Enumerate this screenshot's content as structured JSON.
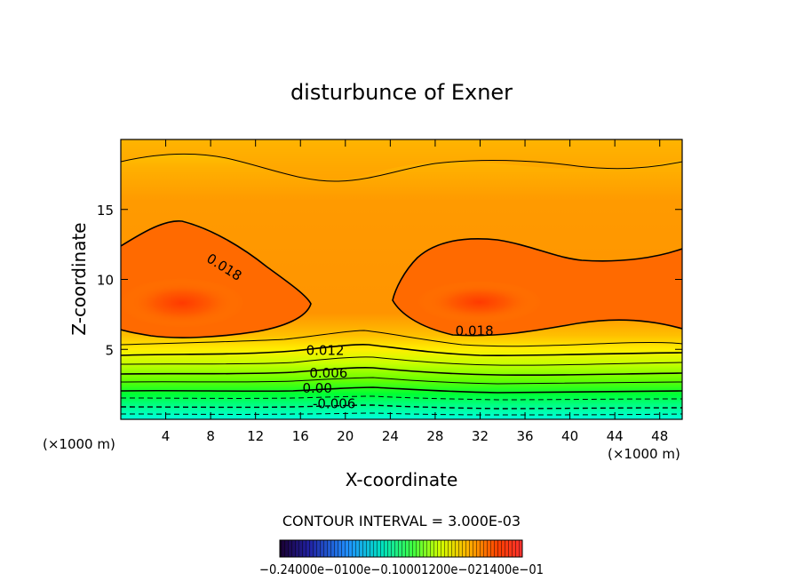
{
  "chart_data": {
    "type": "heatmap",
    "title": "disturbunce of Exner",
    "xlabel": "X-coordinate",
    "ylabel": "Z-coordinate",
    "x_unit": "(×1000 m)",
    "x_unit_right": "(×1000 m)",
    "xlim": [
      0,
      50
    ],
    "ylim": [
      0,
      20
    ],
    "x_ticks": [
      4,
      8,
      12,
      16,
      20,
      24,
      28,
      32,
      36,
      40,
      44,
      48
    ],
    "y_ticks": [
      5,
      10,
      15
    ],
    "contour_interval_text": "CONTOUR INTERVAL = 3.000E-03",
    "contour_labels": [
      {
        "text": "0.018",
        "x": 9,
        "z": 10.6
      },
      {
        "text": "0.018",
        "x": 31.5,
        "z": 6.0
      },
      {
        "text": "0.012",
        "x": 18.2,
        "z": 4.6
      },
      {
        "text": "0.006",
        "x": 18.5,
        "z": 3.0
      },
      {
        "text": "0.00",
        "x": 17.5,
        "z": 1.9
      },
      {
        "text": "-0.006",
        "x": 19.0,
        "z": 0.8
      }
    ],
    "colorbar": {
      "labels_text": "−0.24000e−0100e−0.10001200e−021400e−01",
      "colors": [
        "#000033",
        "#00ffcc",
        "#ffcc00",
        "#ff2200"
      ]
    },
    "colors": {
      "high": "#ff4000",
      "mid": "#ff9900",
      "top": "#ffcc00",
      "low": "#00ffcc"
    }
  }
}
